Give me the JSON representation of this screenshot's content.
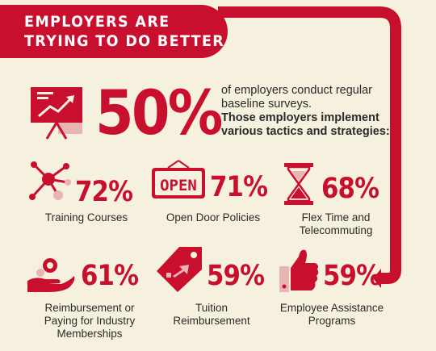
{
  "header": {
    "title_line1": "EMPLOYERS ARE",
    "title_line2": "TRYING TO DO BETTER"
  },
  "intro": {
    "percent": "50%",
    "text": "of employers conduct regular baseline surveys.",
    "bold_text": "Those employers implement various tactics and strategies:"
  },
  "tactics": [
    {
      "percent": "72%",
      "label": "Training Courses",
      "icon": "network-molecule-icon"
    },
    {
      "percent": "71%",
      "label": "Open Door Policies",
      "icon": "open-sign-icon",
      "sign_text": "OPEN"
    },
    {
      "percent": "68%",
      "label": "Flex Time and Telecommuting",
      "icon": "hourglass-icon"
    },
    {
      "percent": "61%",
      "label": "Reimbursement or Paying for Industry Memberships",
      "icon": "hand-coins-icon"
    },
    {
      "percent": "59%",
      "label": "Tuition Reimbursement",
      "icon": "price-tag-icon"
    },
    {
      "percent": "59%",
      "label": "Employee Assistance Programs",
      "icon": "thumbs-up-icon"
    }
  ],
  "colors": {
    "accent": "#c8102e",
    "accent_light": "#e8b4b4",
    "background": "#f6f1df",
    "text": "#2a2a2a"
  }
}
